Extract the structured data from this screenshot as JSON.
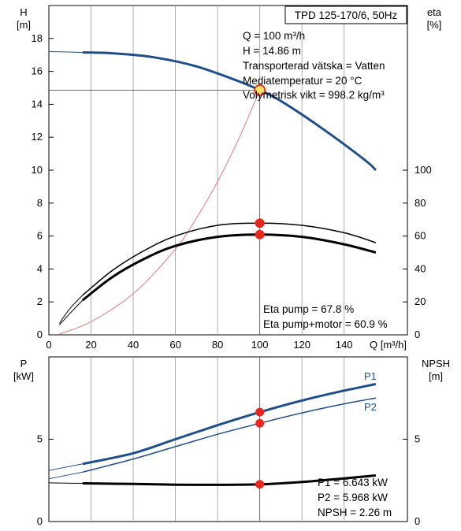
{
  "header": {
    "title": "TPD 125-170/6, 50Hz"
  },
  "info_top": [
    "Q = 100 m³/h",
    "H = 14.86 m",
    "Transporterad vätska = Vatten",
    "Mediatemperatur = 20 °C",
    "Volymetrisk vikt = 998.2 kg/m³"
  ],
  "info_eta": [
    "Eta pump = 67.8 %",
    "Eta pump+motor = 60.9 %"
  ],
  "info_power": [
    "P1 = 6.643 kW",
    "P2 = 5.968 kW",
    "NPSH = 2.26 m"
  ],
  "colors": {
    "blue": "#1f4e8c",
    "black": "#000000",
    "red": "#e8281e",
    "system": "#e07b7b",
    "marker_fill": "#ffe066",
    "grid": "#999999"
  },
  "chart_data": [
    {
      "type": "line",
      "xlabel": "Q [m³/h]",
      "x_ticks": [
        0,
        20,
        40,
        60,
        80,
        100,
        120,
        140
      ],
      "xlim": [
        0,
        170
      ],
      "y_left": {
        "label_top": "H",
        "label_unit": "[m]",
        "ticks": [
          0,
          2,
          4,
          6,
          8,
          10,
          12,
          14,
          16,
          18
        ],
        "ylim": [
          0,
          20
        ]
      },
      "y_right": {
        "label_top": "eta",
        "label_unit": "[%]",
        "ticks": [
          0,
          20,
          40,
          60,
          80,
          100
        ],
        "ylim": [
          0,
          200
        ]
      },
      "series": [
        {
          "axis": "left",
          "color": "blue",
          "width": 3,
          "x": [
            16,
            30,
            50,
            70,
            90,
            100,
            110,
            130,
            150,
            155
          ],
          "y": [
            17.15,
            17.1,
            16.85,
            16.3,
            15.4,
            14.86,
            14.2,
            12.5,
            10.6,
            10.0
          ]
        },
        {
          "axis": "left",
          "color": "blue",
          "width": 1,
          "x": [
            0,
            8,
            16
          ],
          "y": [
            17.2,
            17.18,
            17.15
          ]
        },
        {
          "axis": "left",
          "color": "system",
          "width": 1,
          "x": [
            5,
            20,
            40,
            60,
            70,
            80,
            90,
            100
          ],
          "y": [
            0.05,
            0.8,
            2.5,
            5.2,
            7.1,
            9.3,
            11.9,
            14.86
          ]
        },
        {
          "axis": "right",
          "color": "black",
          "width": 1.5,
          "x": [
            16,
            30,
            45,
            60,
            80,
            100,
            120,
            140,
            155
          ],
          "y": [
            24,
            39,
            51,
            60,
            66.5,
            67.8,
            66.5,
            62,
            56
          ]
        },
        {
          "axis": "right",
          "color": "black",
          "width": 1,
          "x": [
            5,
            10,
            16
          ],
          "y": [
            7,
            16,
            24
          ]
        },
        {
          "axis": "right",
          "color": "black",
          "width": 3,
          "x": [
            16,
            30,
            45,
            60,
            80,
            100,
            120,
            140,
            155
          ],
          "y": [
            21,
            35,
            46,
            54,
            59.5,
            60.9,
            59.5,
            55,
            50
          ]
        },
        {
          "axis": "right",
          "color": "black",
          "width": 1,
          "x": [
            5,
            10,
            16
          ],
          "y": [
            6,
            13,
            21
          ]
        }
      ],
      "duty_point": {
        "x": 100,
        "y": 14.86
      },
      "eta_points": [
        67.8,
        60.9
      ]
    },
    {
      "type": "line",
      "x_ticks": [
        0,
        20,
        40,
        60,
        80,
        100,
        120,
        140
      ],
      "xlim": [
        0,
        170
      ],
      "y_left": {
        "label_top": "P",
        "label_unit": "[kW]",
        "ticks": [
          0,
          5
        ],
        "ylim": [
          0,
          10
        ]
      },
      "y_right": {
        "label_top": "NPSH",
        "label_unit": "[m]",
        "ticks": [
          0,
          5
        ],
        "ylim": [
          0,
          10
        ]
      },
      "series": [
        {
          "name": "P1",
          "axis": "left",
          "color": "blue",
          "width": 3,
          "x": [
            16,
            40,
            60,
            80,
            100,
            120,
            140,
            155
          ],
          "y": [
            3.5,
            4.15,
            5.0,
            5.85,
            6.643,
            7.35,
            7.95,
            8.35
          ]
        },
        {
          "axis": "left",
          "color": "blue",
          "width": 1,
          "x": [
            0,
            8,
            16
          ],
          "y": [
            3.1,
            3.3,
            3.5
          ]
        },
        {
          "name": "P2",
          "axis": "left",
          "color": "blue",
          "width": 1.5,
          "x": [
            16,
            40,
            60,
            80,
            100,
            120,
            140,
            155
          ],
          "y": [
            3.0,
            3.8,
            4.55,
            5.3,
            5.968,
            6.6,
            7.15,
            7.5
          ]
        },
        {
          "axis": "left",
          "color": "blue",
          "width": 1,
          "x": [
            0,
            8,
            16
          ],
          "y": [
            2.6,
            2.8,
            3.0
          ]
        },
        {
          "axis": "right",
          "color": "black",
          "width": 3,
          "x": [
            16,
            40,
            60,
            80,
            100,
            120,
            140,
            155
          ],
          "y": [
            2.32,
            2.28,
            2.24,
            2.23,
            2.26,
            2.4,
            2.62,
            2.8
          ]
        },
        {
          "axis": "right",
          "color": "black",
          "width": 1,
          "x": [
            0,
            8,
            16
          ],
          "y": [
            2.35,
            2.33,
            2.32
          ]
        }
      ],
      "points": [
        6.643,
        5.968,
        2.26
      ]
    }
  ]
}
